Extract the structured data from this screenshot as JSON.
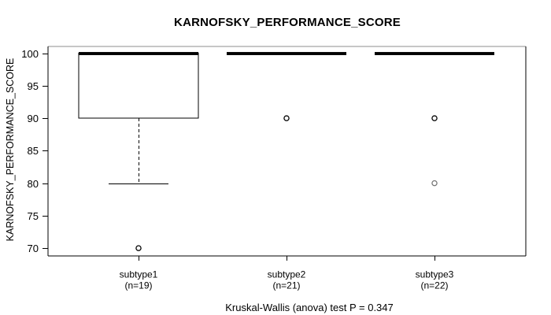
{
  "page": {
    "background": "#ffffff",
    "foreground": "#000000"
  },
  "chart_data": {
    "type": "boxplot",
    "title": "KARNOFSKY_PERFORMANCE_SCORE",
    "ylabel": "KARNOFSKY_PERFORMANCE_SCORE",
    "footer": "Kruskal-Wallis (anova) test P = 0.347",
    "xlabel": "",
    "ylim": [
      68.8,
      101.05
    ],
    "yticks": [
      70,
      75,
      80,
      85,
      90,
      95,
      100
    ],
    "grid": false,
    "legend": "none",
    "frame_top_color": "#8c8c8c",
    "frame_color": "#000000",
    "box_fill": "#ffffff",
    "line_color": "#000000",
    "groups": [
      {
        "label": "subtype1",
        "sublabel": "(n=19)",
        "median": 100,
        "q1": 90,
        "q3": 100,
        "whisker_low": 80,
        "whisker_high": 100,
        "outliers": [
          {
            "value": 70,
            "color": "#000000"
          }
        ]
      },
      {
        "label": "subtype2",
        "sublabel": "(n=21)",
        "median": 100,
        "q1": 100,
        "q3": 100,
        "whisker_low": 100,
        "whisker_high": 100,
        "outliers": [
          {
            "value": 90,
            "color": "#000000"
          }
        ]
      },
      {
        "label": "subtype3",
        "sublabel": "(n=22)",
        "median": 100,
        "q1": 100,
        "q3": 100,
        "whisker_low": 100,
        "whisker_high": 100,
        "outliers": [
          {
            "value": 90,
            "color": "#000000"
          },
          {
            "value": 80,
            "color": "#757575"
          }
        ]
      }
    ]
  }
}
